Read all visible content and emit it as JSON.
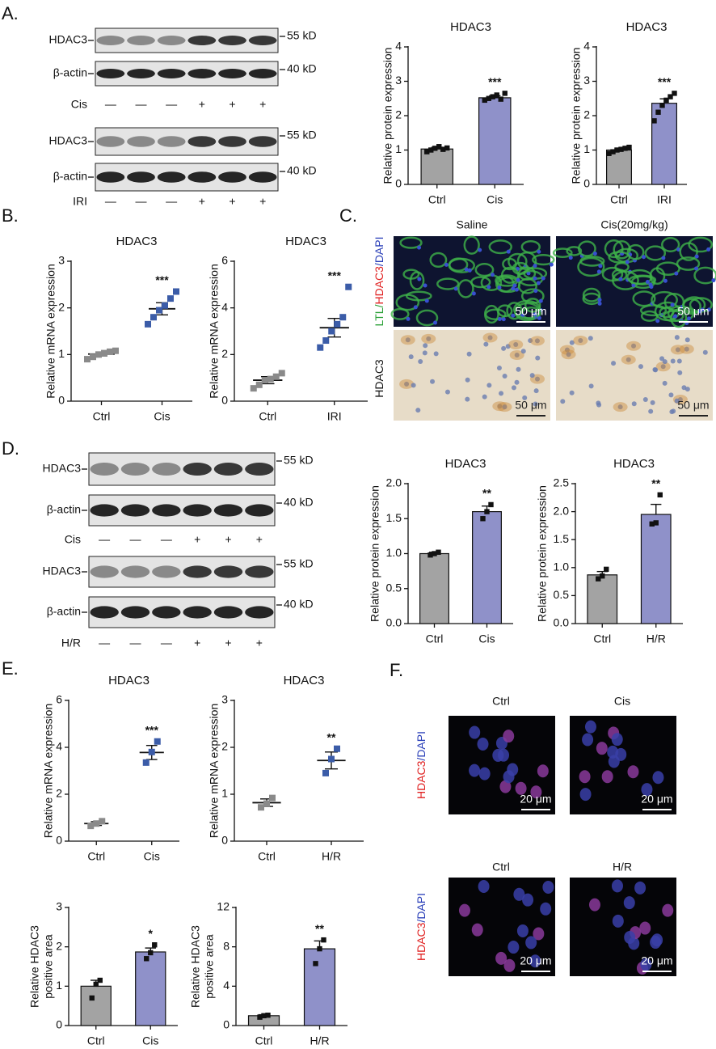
{
  "panels": [
    "A.",
    "B.",
    "C.",
    "D.",
    "E.",
    "F."
  ],
  "blots": [
    {
      "rows": [
        {
          "label": "HDAC3",
          "marker": "55 kD"
        },
        {
          "label": "β-actin",
          "marker": "40 kD"
        }
      ],
      "treatment": "Cis",
      "lanes": [
        "—",
        "—",
        "—",
        "+",
        "+",
        "+"
      ]
    },
    {
      "rows": [
        {
          "label": "HDAC3",
          "marker": "55 kD"
        },
        {
          "label": "β-actin",
          "marker": "40 kD"
        }
      ],
      "treatment": "IRI",
      "lanes": [
        "—",
        "—",
        "—",
        "+",
        "+",
        "+"
      ]
    },
    {
      "rows": [
        {
          "label": "HDAC3",
          "marker": "55 kD"
        },
        {
          "label": "β-actin",
          "marker": "40 kD"
        }
      ],
      "treatment": "Cis",
      "lanes": [
        "—",
        "—",
        "—",
        "+",
        "+",
        "+"
      ]
    },
    {
      "rows": [
        {
          "label": "HDAC3",
          "marker": "55 kD"
        },
        {
          "label": "β-actin",
          "marker": "40 kD"
        }
      ],
      "treatment": "H/R",
      "lanes": [
        "—",
        "—",
        "—",
        "+",
        "+",
        "+"
      ]
    }
  ],
  "images_c": {
    "columns": [
      "Saline",
      "Cis(20mg/kg)"
    ],
    "row_labels": [
      [
        "LTL/",
        "HDAC3",
        "/DAPI"
      ],
      [
        "HDAC3"
      ]
    ],
    "scale_bar": "50 μm"
  },
  "images_f": {
    "groups": [
      {
        "columns": [
          "Ctrl",
          "Cis"
        ]
      },
      {
        "columns": [
          "Ctrl",
          "H/R"
        ]
      }
    ],
    "row_label": [
      "HDAC3",
      "/DAPI"
    ],
    "scale_bar": "20 μm"
  },
  "chart_data": [
    {
      "type": "bar",
      "title": "HDAC3",
      "y_label": [
        "Relative protein expression"
      ],
      "categories": [
        "Ctrl",
        "Cis"
      ],
      "values": [
        1.03,
        2.52
      ],
      "errors": [
        0.05,
        0.06
      ],
      "points": [
        [
          0.95,
          1.0,
          1.05,
          1.1,
          1.02,
          1.06
        ],
        [
          2.45,
          2.5,
          2.55,
          2.6,
          2.48,
          2.65
        ]
      ],
      "colors": [
        "#a3a3a3",
        "#8f91c9"
      ],
      "point_color": "#111111",
      "value_annotations": [
        null,
        "***"
      ],
      "ylim": [
        0,
        4
      ],
      "yticks": [
        0,
        1,
        2,
        3,
        4
      ]
    },
    {
      "type": "bar",
      "title": "HDAC3",
      "y_label": [
        "Relative protein expression"
      ],
      "categories": [
        "Ctrl",
        "IRI"
      ],
      "values": [
        1.0,
        2.36
      ],
      "errors": [
        0.04,
        0.13
      ],
      "points": [
        [
          0.9,
          0.95,
          1.0,
          1.02,
          1.05,
          1.08
        ],
        [
          1.85,
          2.1,
          2.3,
          2.45,
          2.55,
          2.65
        ]
      ],
      "colors": [
        "#a3a3a3",
        "#8f91c9"
      ],
      "point_color": "#111111",
      "value_annotations": [
        null,
        "***"
      ],
      "ylim": [
        0,
        4
      ],
      "yticks": [
        0,
        1,
        2,
        3,
        4
      ]
    },
    {
      "type": "dotplot",
      "title": "HDAC3",
      "y_label": [
        "Relative mRNA expression"
      ],
      "categories": [
        "Ctrl",
        "Cis"
      ],
      "values": [
        1.01,
        1.98
      ],
      "errors": [
        0.04,
        0.13
      ],
      "points": [
        [
          0.9,
          0.95,
          1.0,
          1.03,
          1.06,
          1.08
        ],
        [
          1.65,
          1.8,
          1.95,
          2.05,
          2.2,
          2.35
        ]
      ],
      "colors": [
        "#8a8a8a",
        "#3b5ca8"
      ],
      "value_annotations": [
        null,
        "***"
      ],
      "ylim": [
        0,
        3
      ],
      "yticks": [
        0,
        1,
        2,
        3
      ]
    },
    {
      "type": "dotplot",
      "title": "HDAC3",
      "y_label": [
        "Relative mRNA expression"
      ],
      "categories": [
        "Ctrl",
        "IRI"
      ],
      "values": [
        0.9,
        3.15
      ],
      "errors": [
        0.15,
        0.4
      ],
      "points": [
        [
          0.55,
          0.7,
          0.9,
          0.95,
          1.05,
          1.2
        ],
        [
          2.3,
          2.6,
          3.0,
          3.3,
          3.6,
          4.9
        ]
      ],
      "colors": [
        "#8a8a8a",
        "#3b5ca8"
      ],
      "value_annotations": [
        null,
        "***"
      ],
      "ylim": [
        0,
        6
      ],
      "yticks": [
        0,
        2,
        4,
        6
      ]
    },
    {
      "type": "bar",
      "title": "HDAC3",
      "y_label": [
        "Relative protein expression"
      ],
      "categories": [
        "Ctrl",
        "Cis"
      ],
      "values": [
        1.0,
        1.6
      ],
      "errors": [
        0.02,
        0.08
      ],
      "points": [
        [
          0.98,
          1.0,
          1.02
        ],
        [
          1.5,
          1.6,
          1.7
        ]
      ],
      "colors": [
        "#a3a3a3",
        "#8f91c9"
      ],
      "point_color": "#111111",
      "value_annotations": [
        null,
        "**"
      ],
      "ylim": [
        0,
        2
      ],
      "yticks": [
        {
          "value": 0,
          "label": "0.0"
        },
        0.5,
        {
          "value": 1,
          "label": "1.0"
        },
        1.5,
        {
          "value": 2,
          "label": "2.0"
        }
      ]
    },
    {
      "type": "bar",
      "title": "HDAC3",
      "y_label": [
        "Relative protein expression"
      ],
      "categories": [
        "Ctrl",
        "H/R"
      ],
      "values": [
        0.87,
        1.95
      ],
      "errors": [
        0.06,
        0.18
      ],
      "points": [
        [
          0.8,
          0.85,
          0.97
        ],
        [
          1.78,
          1.8,
          2.3
        ]
      ],
      "colors": [
        "#a3a3a3",
        "#8f91c9"
      ],
      "point_color": "#111111",
      "value_annotations": [
        null,
        "**"
      ],
      "ylim": [
        0,
        2.5
      ],
      "yticks": [
        {
          "value": 0,
          "label": "0.0"
        },
        0.5,
        {
          "value": 1,
          "label": "1.0"
        },
        1.5,
        {
          "value": 2,
          "label": "2.0"
        },
        2.5
      ]
    },
    {
      "type": "dotplot",
      "title": "HDAC3",
      "y_label": [
        "Relative mRNA expression"
      ],
      "categories": [
        "Ctrl",
        "Cis"
      ],
      "values": [
        0.75,
        3.78
      ],
      "errors": [
        0.08,
        0.3
      ],
      "points": [
        [
          0.65,
          0.75,
          0.85
        ],
        [
          3.35,
          3.8,
          4.25
        ]
      ],
      "colors": [
        "#8a8a8a",
        "#3b5ca8"
      ],
      "value_annotations": [
        null,
        "***"
      ],
      "ylim": [
        0,
        6
      ],
      "yticks": [
        0,
        2,
        4,
        6
      ]
    },
    {
      "type": "dotplot",
      "title": "HDAC3",
      "y_label": [
        "Relative mRNA expression"
      ],
      "categories": [
        "Ctrl",
        "H/R"
      ],
      "values": [
        0.82,
        1.72
      ],
      "errors": [
        0.08,
        0.18
      ],
      "points": [
        [
          0.72,
          0.8,
          0.92
        ],
        [
          1.45,
          1.75,
          1.97
        ]
      ],
      "colors": [
        "#8a8a8a",
        "#3b5ca8"
      ],
      "value_annotations": [
        null,
        "**"
      ],
      "ylim": [
        0,
        3
      ],
      "yticks": [
        0,
        1,
        2,
        3
      ]
    },
    {
      "type": "bar",
      "y_label": [
        "Relative HDAC3",
        "positive area"
      ],
      "categories": [
        "Ctrl",
        "Cis"
      ],
      "values": [
        1.0,
        1.87
      ],
      "errors": [
        0.15,
        0.1
      ],
      "points": [
        [
          0.7,
          1.05,
          1.15
        ],
        [
          1.7,
          1.85,
          2.05
        ]
      ],
      "colors": [
        "#a3a3a3",
        "#8f91c9"
      ],
      "point_color": "#111111",
      "value_annotations": [
        null,
        "*"
      ],
      "ylim": [
        0,
        3
      ],
      "yticks": [
        0,
        1,
        2,
        3
      ]
    },
    {
      "type": "bar",
      "y_label": [
        "Relative HDAC3",
        "positive area"
      ],
      "categories": [
        "Ctrl",
        "H/R"
      ],
      "values": [
        1.0,
        7.8
      ],
      "errors": [
        0.1,
        0.8
      ],
      "points": [
        [
          0.85,
          1.0,
          1.05
        ],
        [
          6.3,
          7.8,
          8.7
        ]
      ],
      "colors": [
        "#a3a3a3",
        "#8f91c9"
      ],
      "point_color": "#111111",
      "value_annotations": [
        null,
        "**"
      ],
      "ylim": [
        0,
        12
      ],
      "yticks": [
        0,
        4,
        8,
        12
      ]
    }
  ]
}
